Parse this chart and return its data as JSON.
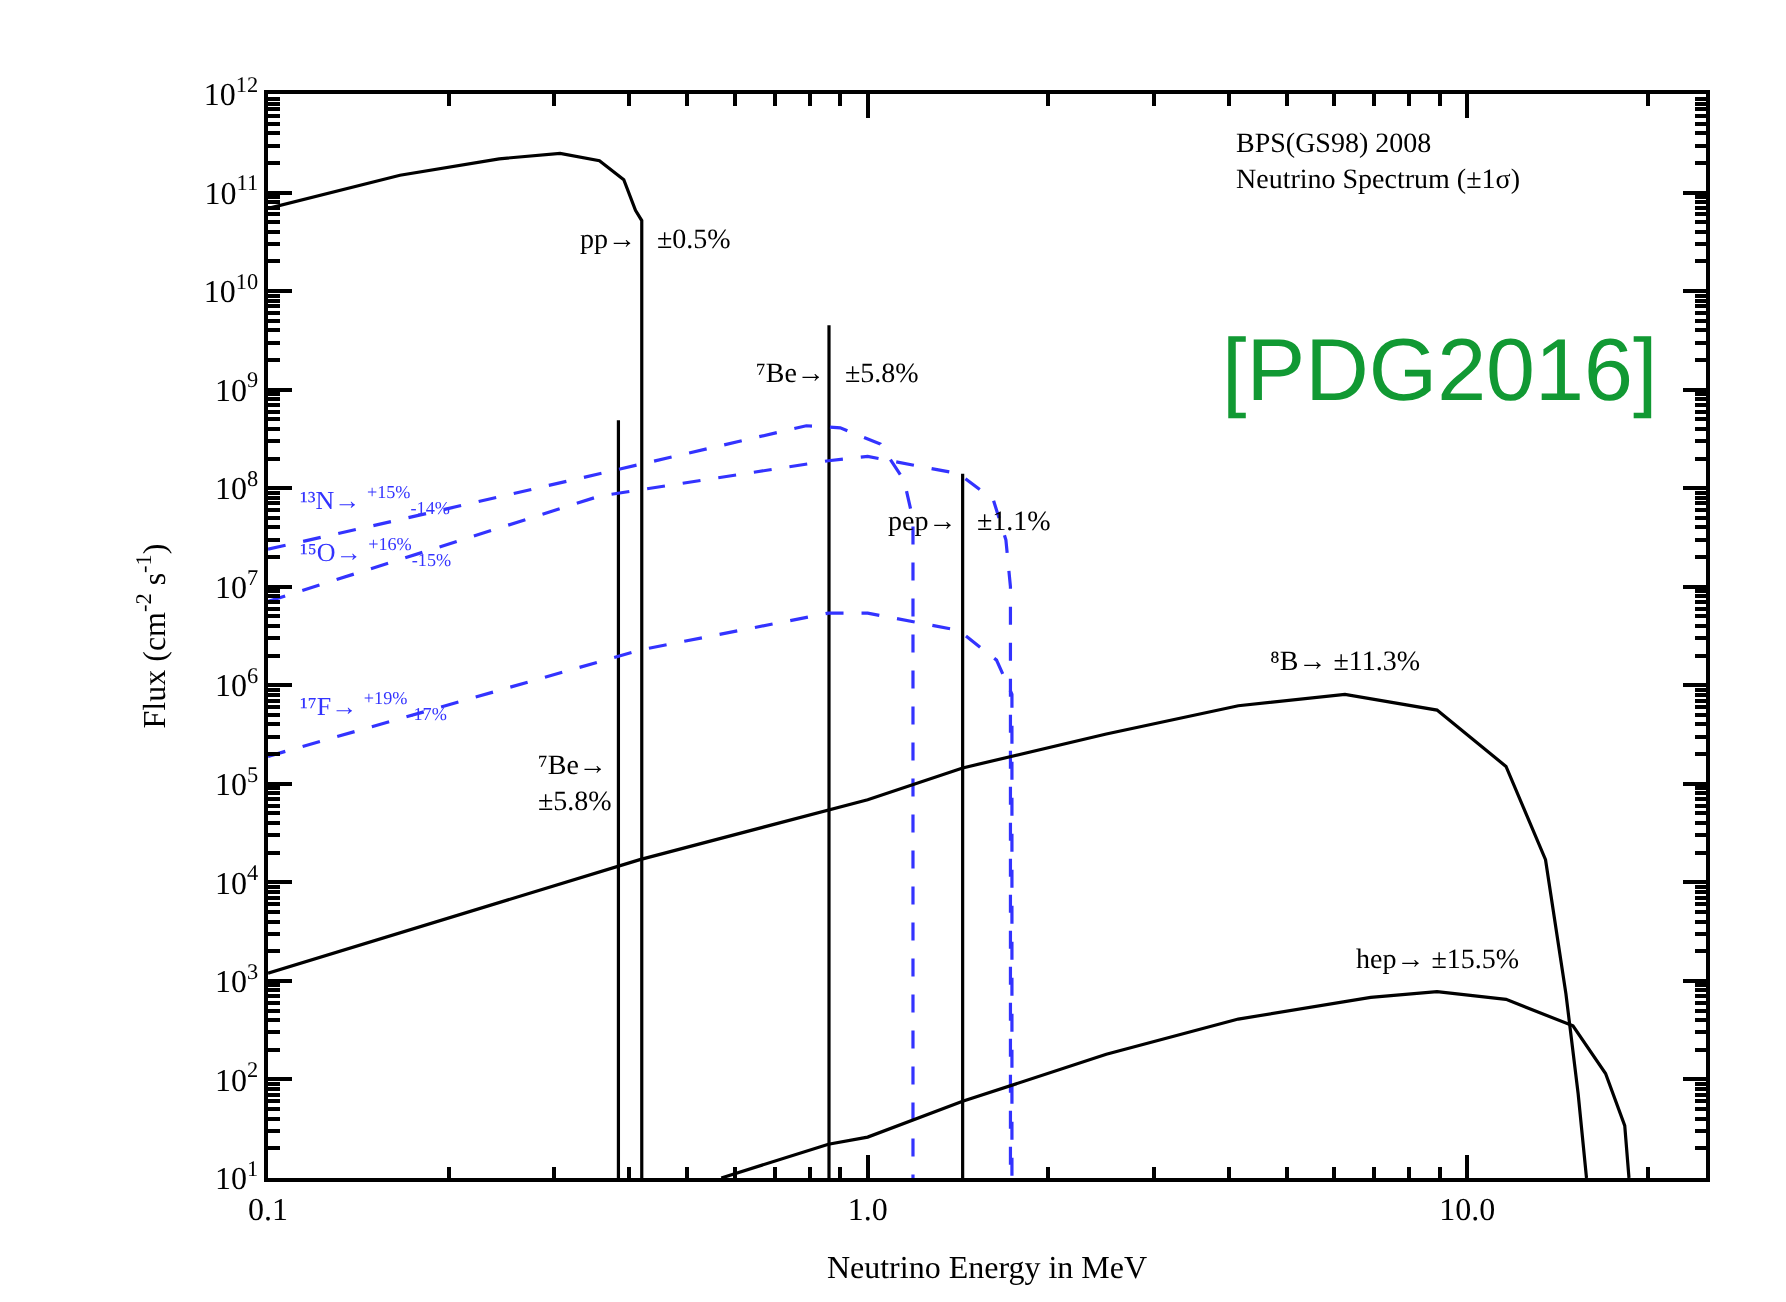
{
  "chart_data": {
    "type": "line",
    "title": "BPS(GS98) 2008\nNeutrino Spectrum (±1σ)",
    "subtitle": "[PDG2016]",
    "xlabel": "Neutrino Energy in MeV",
    "ylabel": "Flux (cm$^{-2}$ s$^{-1}$)",
    "log": "xy",
    "legend": false,
    "xlim": [
      0.1,
      25
    ],
    "xticks": [
      {
        "value": 0.1,
        "label": "0.1"
      },
      {
        "value": 1,
        "label": "1.0"
      },
      {
        "value": 10,
        "label": "10.0"
      }
    ],
    "ylim": [
      10,
      1000000000000.0
    ],
    "yticks": [
      {
        "value": 10,
        "label": "10$^{1}$"
      },
      {
        "value": 100,
        "label": "10$^{2}$"
      },
      {
        "value": 1000,
        "label": "10$^{3}$"
      },
      {
        "value": 10000,
        "label": "10$^{4}$"
      },
      {
        "value": 100000,
        "label": "10$^{5}$"
      },
      {
        "value": 1000000,
        "label": "10$^{6}$"
      },
      {
        "value": 10000000,
        "label": "10$^{7}$"
      },
      {
        "value": 100000000,
        "label": "10$^{8}$"
      },
      {
        "value": 1000000000,
        "label": "10$^{9}$"
      },
      {
        "value": 10000000000,
        "label": "10$^{10}$"
      },
      {
        "value": 100000000000,
        "label": "10$^{11}$"
      },
      {
        "value": 1000000000000,
        "label": "10$^{12}$"
      }
    ],
    "series": [
      {
        "name": "pp→ ±0.5%",
        "color": "#000000",
        "line_style": "solid",
        "x": [
          0.1,
          0.166,
          0.243,
          0.307,
          0.357,
          0.392,
          0.41,
          0.42,
          0.42
        ],
        "values": [
          69000000000.0,
          150000000000.0,
          220000000000.0,
          250000000000.0,
          210000000000.0,
          135000000000.0,
          66000000000.0,
          52000000000.0,
          10
        ]
      },
      {
        "name": "⁷Be→\n±5.8%",
        "color": "#000000",
        "line_style": "solid",
        "x": [
          0.384,
          0.384
        ],
        "values": [
          10,
          490000000.0
        ]
      },
      {
        "name": "⁷Be→ ±5.8%",
        "color": "#000000",
        "line_style": "solid",
        "x": [
          0.862,
          0.862
        ],
        "values": [
          10,
          4500000000.0
        ]
      },
      {
        "name": "pep→ ±1.1%",
        "color": "#000000",
        "line_style": "solid",
        "x": [
          1.44,
          1.44
        ],
        "values": [
          10,
          140000000.0
        ]
      },
      {
        "name": "¹³N→ $^{+15%}$$_{-14%}$",
        "color": "#3333ff",
        "line_style": "dashed",
        "x": [
          0.1,
          0.166,
          0.357,
          0.79,
          0.9,
          1.05,
          1.15,
          1.19,
          1.19
        ],
        "values": [
          24000000.0,
          48000000.0,
          140000000.0,
          430000000.0,
          410000000.0,
          280000000.0,
          120000000.0,
          48000000.0,
          10
        ]
      },
      {
        "name": "¹⁵O→ $^{+16%}$$_{-15%}$",
        "color": "#3333ff",
        "line_style": "dashed",
        "x": [
          0.1,
          0.357,
          0.86,
          1.0,
          1.42,
          1.62,
          1.7,
          1.73,
          1.73
        ],
        "values": [
          7100000.0,
          83000000.0,
          190000000.0,
          210000000.0,
          140000000.0,
          76000000.0,
          30000000.0,
          10000000.0,
          10
        ]
      },
      {
        "name": "¹⁷F→ $^{+19%}$$_{-17%}$",
        "color": "#3333ff",
        "line_style": "dashed",
        "x": [
          0.1,
          0.42,
          0.86,
          1.0,
          1.42,
          1.64,
          1.74,
          1.74
        ],
        "values": [
          190000.0,
          2300000.0,
          5400000.0,
          5400000.0,
          3600000.0,
          1800000.0,
          810000.0,
          10
        ]
      },
      {
        "name": "⁸B→ ±11.3%",
        "color": "#000000",
        "line_style": "solid",
        "x": [
          0.1,
          0.417,
          1.0,
          1.44,
          2.5,
          4.15,
          6.25,
          8.9,
          11.6,
          13.5,
          14.6,
          15.3,
          15.8
        ],
        "values": [
          1200.0,
          17000.0,
          69000.0,
          145000.0,
          320000.0,
          620000.0,
          810000.0,
          560000.0,
          150000.0,
          17000.0,
          740,
          72,
          10
        ]
      },
      {
        "name": "hep→ ±15.5%",
        "color": "#000000",
        "line_style": "solid",
        "x": [
          0.57,
          0.86,
          1.0,
          1.44,
          2.5,
          4.15,
          6.9,
          8.9,
          11.6,
          15,
          17,
          18.3,
          18.6
        ],
        "values": [
          10,
          22,
          26,
          60,
          180,
          410,
          680,
          780,
          650,
          350,
          115,
          34,
          10
        ]
      }
    ]
  }
}
